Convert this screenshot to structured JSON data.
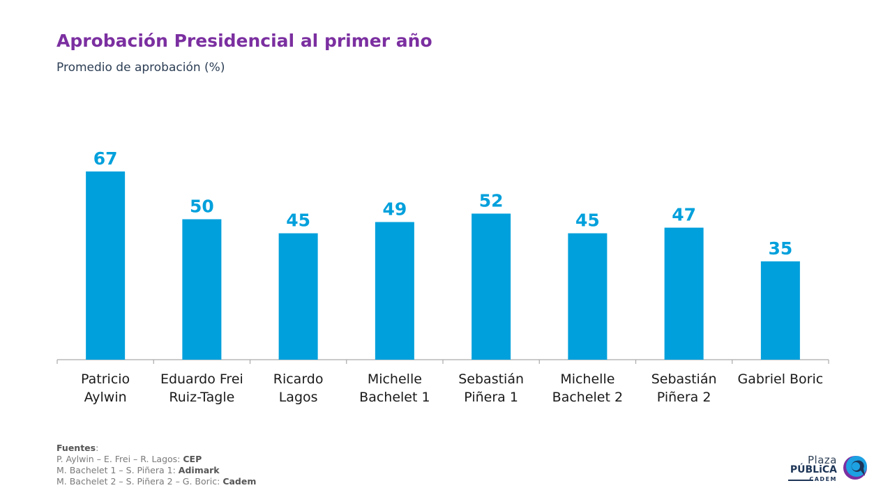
{
  "header": {
    "title": "Aprobación Presidencial al primer año",
    "subtitle": "Promedio de aprobación (%)"
  },
  "colors": {
    "title": "#7b2fa0",
    "bar": "#00a0dc",
    "axis": "#aaaaaa"
  },
  "chart_data": {
    "type": "bar",
    "title": "Aprobación Presidencial al primer año",
    "subtitle": "Promedio de aprobación (%)",
    "xlabel": "",
    "ylabel": "",
    "ylim": [
      0,
      67
    ],
    "grid": false,
    "legend": "none",
    "categories": [
      [
        "Patricio",
        "Aylwin"
      ],
      [
        "Eduardo Frei",
        "Ruiz-Tagle"
      ],
      [
        "Ricardo",
        "Lagos"
      ],
      [
        "Michelle",
        "Bachelet 1"
      ],
      [
        "Sebastián",
        "Piñera 1"
      ],
      [
        "Michelle",
        "Bachelet 2"
      ],
      [
        "Sebastián",
        "Piñera 2"
      ],
      [
        "Gabriel Boric"
      ]
    ],
    "values": [
      67,
      50,
      45,
      49,
      52,
      45,
      47,
      35
    ]
  },
  "sources": {
    "heading": "Fuentes",
    "lines": [
      {
        "text": "P. Aylwin – E. Frei – R. Lagos: ",
        "source": "CEP"
      },
      {
        "text": "M. Bachelet 1 – S. Piñera 1: ",
        "source": "Adimark"
      },
      {
        "text": "M. Bachelet 2 – S. Piñera 2 – G. Boric: ",
        "source": "Cadem"
      }
    ]
  },
  "logo": {
    "line1": "Plaza",
    "line2": "PÚBLiCA",
    "line3": "CADEM"
  }
}
